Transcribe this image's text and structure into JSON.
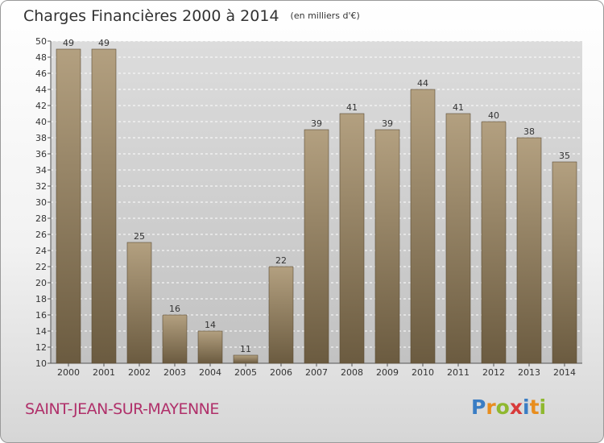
{
  "header": {
    "title": "Charges Financières 2000 à 2014",
    "unit": "(en milliers d'€)"
  },
  "commune": "SAINT-JEAN-SUR-MAYENNE",
  "logo": {
    "text": "Proxiti",
    "letter_colors": [
      "#3a7dc4",
      "#e88d1e",
      "#8fb82f",
      "#d83a3a",
      "#3a7dc4",
      "#e88d1e",
      "#8fb82f"
    ]
  },
  "colors": {
    "bar_light": "#b3a080",
    "bar_dark": "#6b5b40",
    "title": "#333333",
    "commune": "#b0306a"
  },
  "chart_data": {
    "type": "bar",
    "title": "Charges Financières 2000 à 2014",
    "subtitle": "(en milliers d'€)",
    "categories": [
      "2000",
      "2001",
      "2002",
      "2003",
      "2004",
      "2005",
      "2006",
      "2007",
      "2008",
      "2009",
      "2010",
      "2011",
      "2012",
      "2013",
      "2014"
    ],
    "values": [
      49,
      49,
      25,
      16,
      14,
      11,
      22,
      39,
      41,
      39,
      44,
      41,
      40,
      38,
      35
    ],
    "ylim": [
      10,
      50
    ],
    "yticks": [
      10,
      12,
      14,
      16,
      18,
      20,
      22,
      24,
      26,
      28,
      30,
      32,
      34,
      36,
      38,
      40,
      42,
      44,
      46,
      48,
      50
    ],
    "grid": true,
    "legend": "none"
  }
}
